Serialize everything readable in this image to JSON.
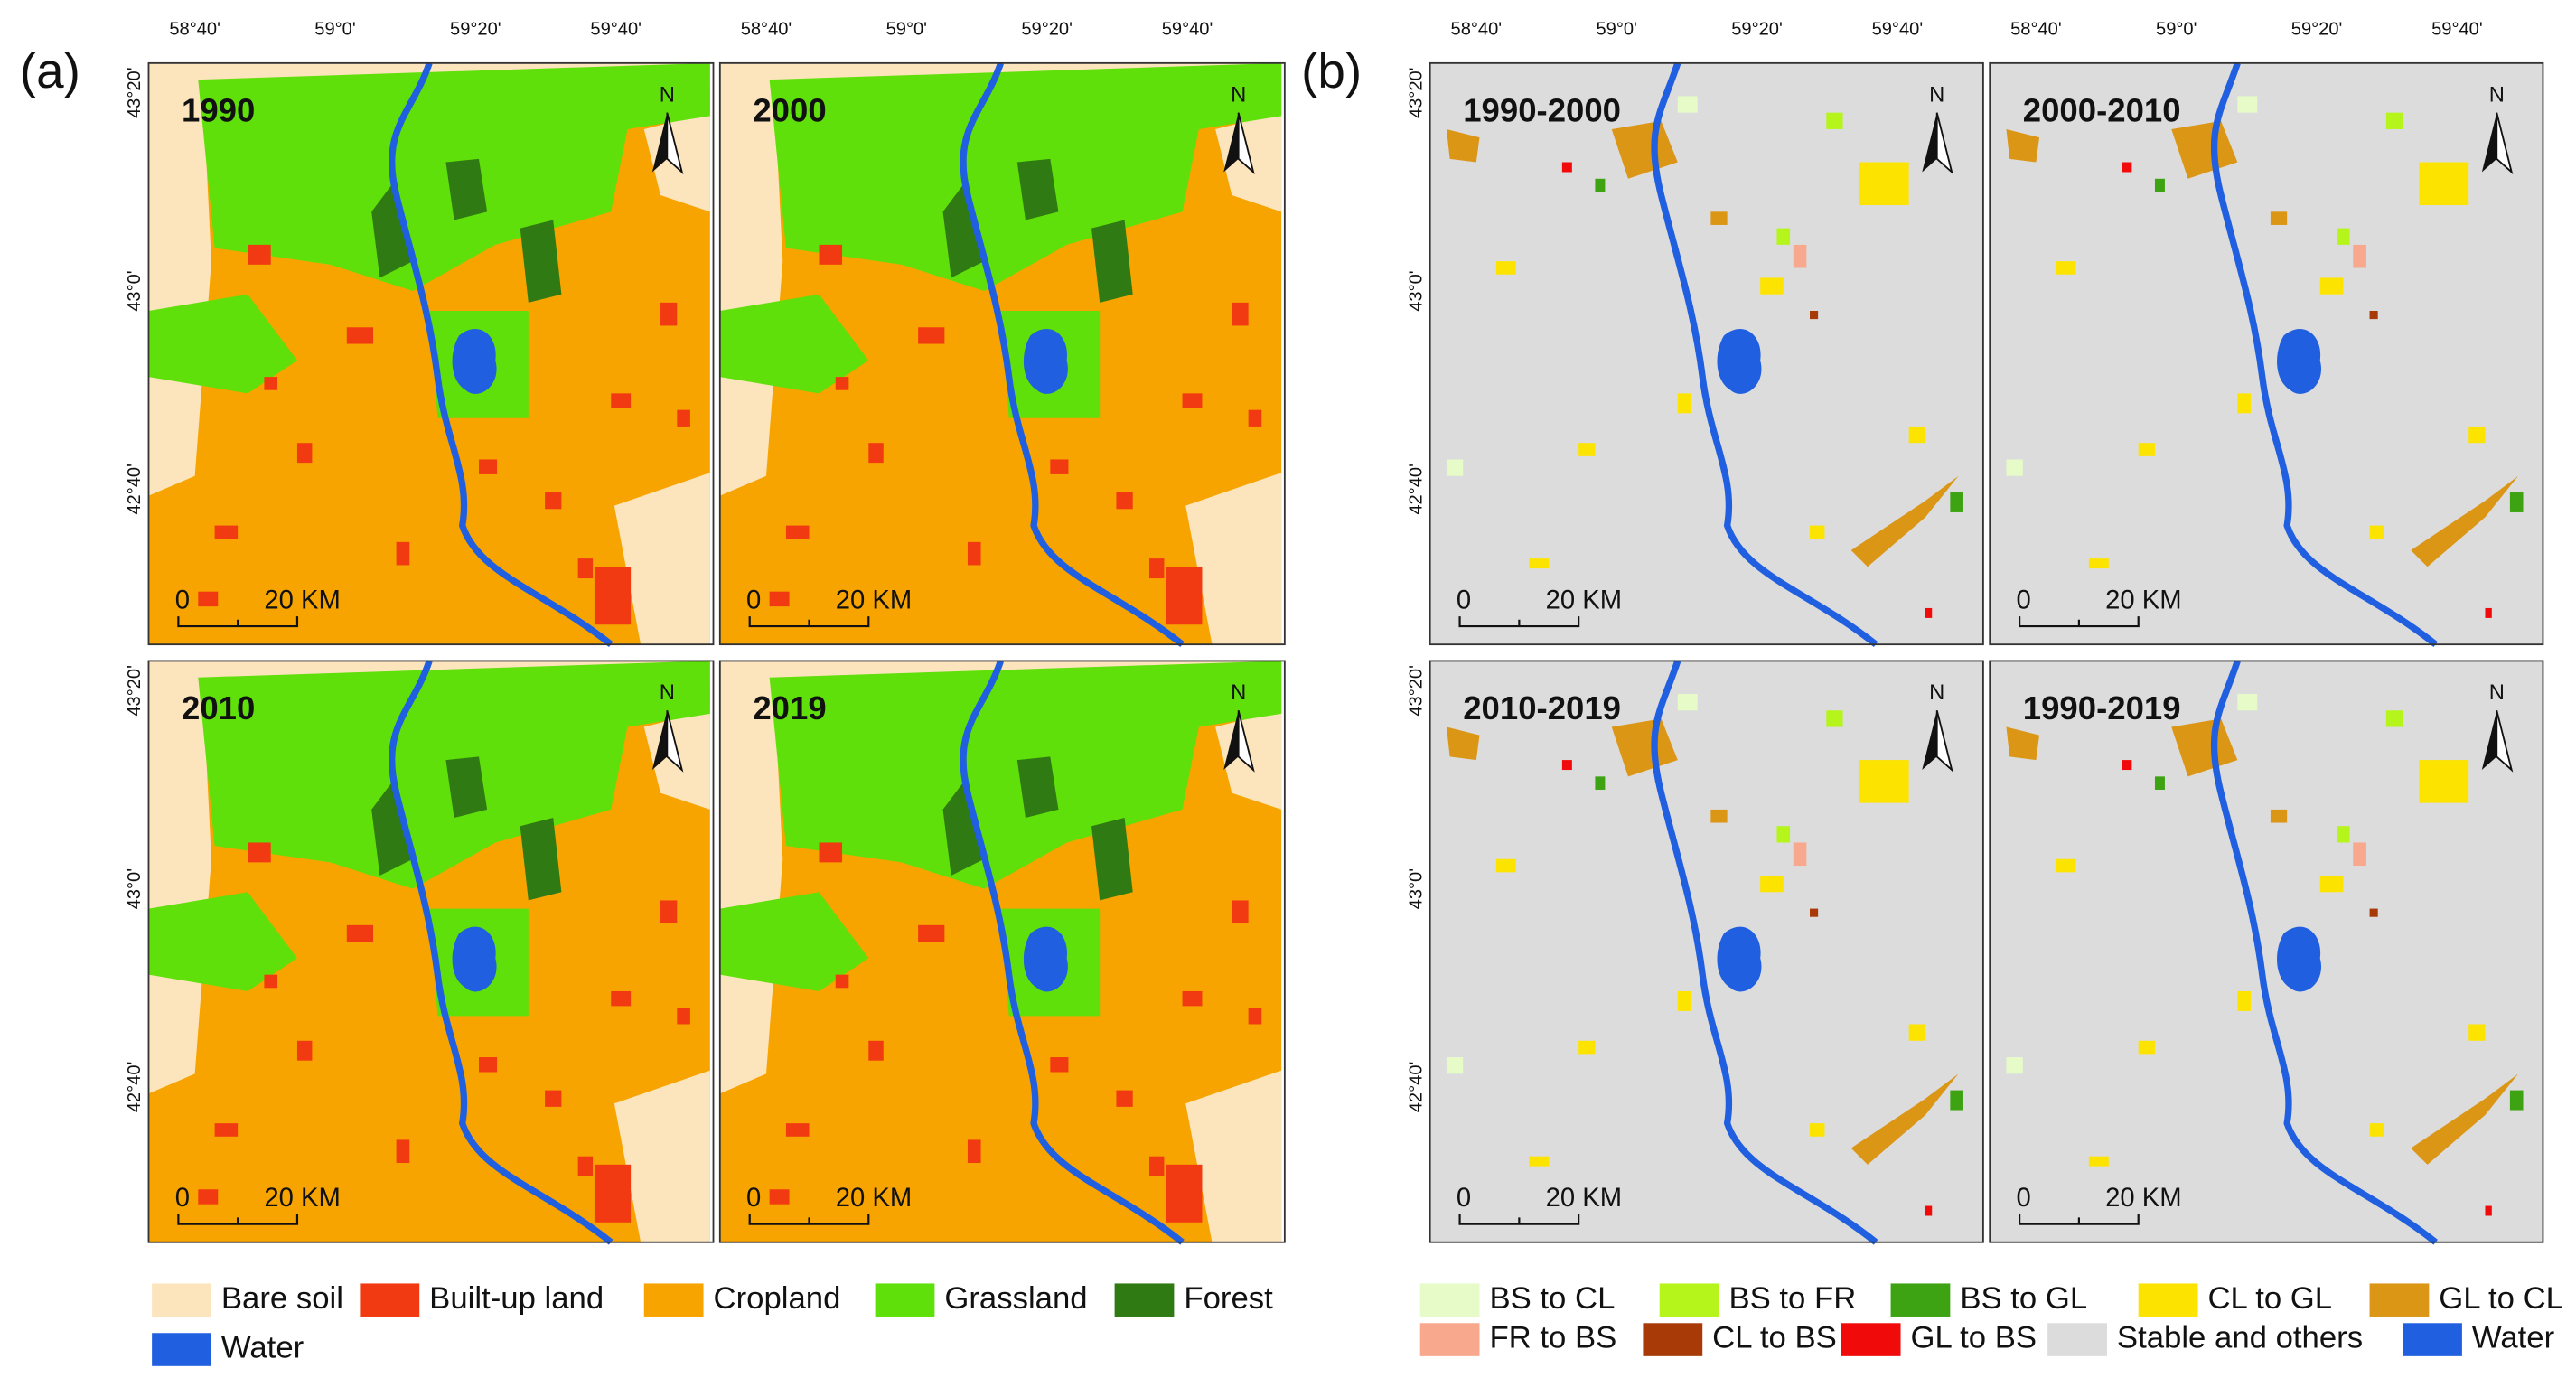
{
  "panels": [
    {
      "label": "(a)",
      "x_ticks": [
        "58°40'",
        "59°0'",
        "59°20'",
        "59°40'"
      ],
      "y_ticks": [
        "43°20'",
        "43°0'",
        "42°40'"
      ],
      "maps": [
        {
          "title": "1990"
        },
        {
          "title": "2000"
        },
        {
          "title": "2010"
        },
        {
          "title": "2019"
        }
      ],
      "legend": [
        {
          "name": "Bare soil",
          "color": "#fce4bd"
        },
        {
          "name": "Built-up land",
          "color": "#f23a12"
        },
        {
          "name": "Cropland",
          "color": "#f7a400"
        },
        {
          "name": "Grassland",
          "color": "#5fe00a"
        },
        {
          "name": "Forest",
          "color": "#2f7a12"
        },
        {
          "name": "Water",
          "color": "#1f5fe0"
        }
      ]
    },
    {
      "label": "(b)",
      "x_ticks": [
        "58°40'",
        "59°0'",
        "59°20'",
        "59°40'"
      ],
      "y_ticks": [
        "43°20'",
        "43°0'",
        "42°40'"
      ],
      "maps": [
        {
          "title": "1990-2000"
        },
        {
          "title": "2000-2010"
        },
        {
          "title": "2010-2019"
        },
        {
          "title": "1990-2019"
        }
      ],
      "legend": [
        {
          "name": "BS to CL",
          "color": "#e6fbc8"
        },
        {
          "name": "BS to FR",
          "color": "#b5f51c"
        },
        {
          "name": "BS to GL",
          "color": "#3ea312"
        },
        {
          "name": "CL to GL",
          "color": "#fde400"
        },
        {
          "name": "GL to CL",
          "color": "#dc9616"
        },
        {
          "name": "FR to BS",
          "color": "#f8a88c"
        },
        {
          "name": "CL to BS",
          "color": "#a83a08"
        },
        {
          "name": "GL to BS",
          "color": "#f00a0a"
        },
        {
          "name": "Stable and others",
          "color": "#dcdcdc"
        },
        {
          "name": "Water",
          "color": "#1f5fe0"
        }
      ]
    }
  ],
  "scale_bar": {
    "start": "0",
    "end": "20 KM"
  },
  "north_arrow": "N"
}
